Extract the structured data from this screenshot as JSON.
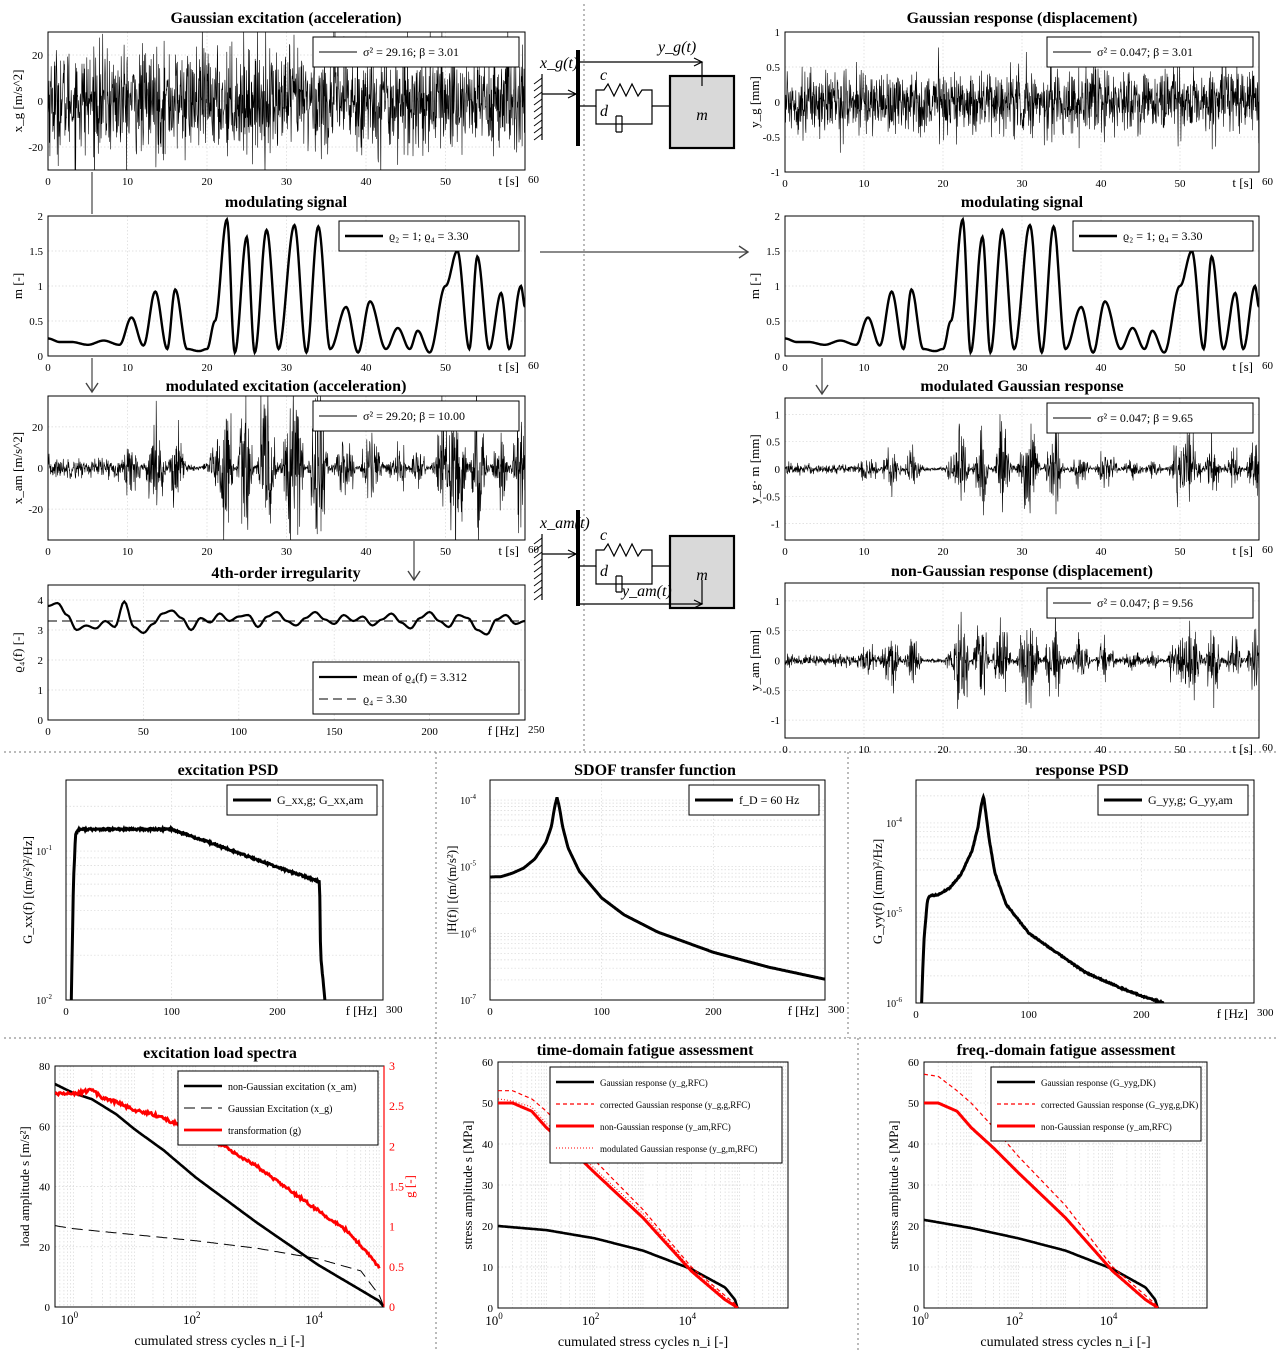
{
  "chart_data": [
    {
      "id": "p1",
      "type": "line",
      "title": "Gaussian excitation (acceleration)",
      "xlabel": "t [s]",
      "ylabel": "x_g [m/s^2]",
      "xlim": [
        0,
        60
      ],
      "ylim": [
        -30,
        30
      ],
      "xticks": [
        0,
        10,
        20,
        30,
        40,
        50,
        60
      ],
      "yticks": [
        -20,
        0,
        20
      ],
      "legend": "top-right",
      "legend_text": "σ² = 29.16;   β = 3.01",
      "signal": {
        "kind": "noise",
        "amplitude": 15,
        "modulated": false
      }
    },
    {
      "id": "p2",
      "type": "line",
      "title": "modulating signal",
      "xlabel": "t [s]",
      "ylabel": "m [-]",
      "xlim": [
        0,
        60
      ],
      "ylim": [
        0,
        2
      ],
      "xticks": [
        0,
        10,
        20,
        30,
        40,
        50,
        60
      ],
      "yticks": [
        0,
        0.5,
        1,
        1.5,
        2
      ],
      "legend": "top-right",
      "legend_text": "ϱ₂ = 1;   ϱ₄ = 3.30",
      "series": [
        {
          "x": [
            0,
            1.5,
            3,
            5,
            7,
            9,
            10.5,
            12,
            13.5,
            15,
            16,
            17.5,
            19,
            20,
            21,
            22.5,
            23.5,
            25,
            26,
            27.5,
            29,
            31,
            32.5,
            34,
            35.5,
            37.5,
            39,
            40.5,
            42.5,
            44,
            45.5,
            46.5,
            48,
            50,
            51.5,
            53,
            54,
            55.5,
            57,
            58,
            59.5,
            60
          ],
          "y": [
            0.25,
            0.2,
            0.2,
            0.16,
            0.22,
            0.16,
            0.55,
            0.15,
            0.92,
            0.1,
            0.95,
            0.1,
            0.07,
            0.1,
            0.5,
            1.95,
            0.05,
            1.7,
            0.05,
            1.8,
            0.1,
            1.87,
            0.05,
            1.85,
            0.1,
            0.7,
            0.05,
            0.78,
            0.1,
            0.4,
            0.1,
            0.36,
            0.05,
            1.0,
            1.5,
            0.1,
            1.42,
            0.1,
            0.9,
            0.1,
            1.0,
            0.7
          ]
        }
      ]
    },
    {
      "id": "p3",
      "type": "line",
      "title": "modulated excitation  (acceleration)",
      "xlabel": "t [s]",
      "ylabel": "x_am [m/s^2]",
      "xlim": [
        0,
        60
      ],
      "ylim": [
        -35,
        35
      ],
      "xticks": [
        0,
        10,
        20,
        30,
        40,
        50,
        60
      ],
      "yticks": [
        -20,
        0,
        20
      ],
      "legend": "top-right",
      "legend_text": "σ² = 29.20;   β = 10.00",
      "signal": {
        "kind": "noise",
        "amplitude": 15,
        "modulated": true
      }
    },
    {
      "id": "p4",
      "type": "line",
      "title": "4th-order irregularity",
      "xlabel": "f [Hz]",
      "ylabel": "ϱ₄(f) [-]",
      "xlim": [
        0,
        250
      ],
      "ylim": [
        0,
        4.5
      ],
      "xticks": [
        0,
        50,
        100,
        150,
        200,
        250
      ],
      "yticks": [
        0,
        1,
        2,
        3,
        4
      ],
      "legend": "bottom-right",
      "series": [
        {
          "name": "mean of  ϱ₄(f) = 3.312",
          "x": [
            0,
            5,
            10,
            15,
            20,
            25,
            30,
            35,
            40,
            45,
            50,
            55,
            60,
            65,
            70,
            75,
            80,
            85,
            90,
            95,
            100,
            105,
            110,
            115,
            120,
            125,
            130,
            135,
            140,
            145,
            150,
            155,
            160,
            165,
            170,
            175,
            180,
            185,
            190,
            195,
            200,
            205,
            210,
            215,
            220,
            225,
            230,
            235,
            240,
            245,
            250
          ],
          "y": [
            3.8,
            3.9,
            3.5,
            3.0,
            3.15,
            3.05,
            3.3,
            3.1,
            3.95,
            3.1,
            2.9,
            3.2,
            3.55,
            3.65,
            3.4,
            3.0,
            3.4,
            3.25,
            3.55,
            3.3,
            3.45,
            3.5,
            3.1,
            3.45,
            3.6,
            3.3,
            3.15,
            3.4,
            3.6,
            3.35,
            3.2,
            3.5,
            3.3,
            3.45,
            3.15,
            3.35,
            3.55,
            3.25,
            3.05,
            3.4,
            3.6,
            3.3,
            3.1,
            3.5,
            3.4,
            3.0,
            2.85,
            3.35,
            3.5,
            3.2,
            3.3
          ]
        },
        {
          "name": "ϱ₄ = 3.30",
          "dashed": true,
          "x": [
            0,
            250
          ],
          "y": [
            3.3,
            3.3
          ]
        }
      ]
    },
    {
      "id": "p5",
      "type": "line",
      "title": "Gaussian response  (displacement)",
      "xlabel": "t [s]",
      "ylabel": "y_g [mm]",
      "xlim": [
        0,
        60
      ],
      "ylim": [
        -1,
        1
      ],
      "xticks": [
        0,
        10,
        20,
        30,
        40,
        50,
        60
      ],
      "yticks": [
        -1,
        -0.5,
        0,
        0.5,
        1
      ],
      "legend": "top-right",
      "legend_text": "σ² = 0.047;   β = 3.01",
      "signal": {
        "kind": "noise",
        "amplitude": 0.3,
        "modulated": false
      }
    },
    {
      "id": "p6",
      "type": "line",
      "title": "modulating signal",
      "xlabel": "t [s]",
      "ylabel": "m [-]",
      "xlim": [
        0,
        60
      ],
      "ylim": [
        0,
        2
      ],
      "xticks": [
        0,
        10,
        20,
        30,
        40,
        50,
        60
      ],
      "yticks": [
        0,
        0.5,
        1,
        1.5,
        2
      ],
      "legend": "top-right",
      "legend_text": "ϱ₂ = 1;   ϱ₄ = 3.30",
      "same_as": "p2"
    },
    {
      "id": "p7",
      "type": "line",
      "title": "modulated Gaussian response",
      "xlabel": "t [s]",
      "ylabel": "y_g· m [mm]",
      "xlim": [
        0,
        60
      ],
      "ylim": [
        -1.3,
        1.3
      ],
      "xticks": [
        0,
        10,
        20,
        30,
        40,
        50,
        60
      ],
      "yticks": [
        -1,
        -0.5,
        0,
        0.5,
        1
      ],
      "legend": "top-right",
      "legend_text": "σ² = 0.047;   β = 9.65",
      "signal": {
        "kind": "noise",
        "amplitude": 0.3,
        "modulated": true
      }
    },
    {
      "id": "p8",
      "type": "line",
      "title": "non-Gaussian response  (displacement)",
      "xlabel": "t [s]",
      "ylabel": "y_am [mm]",
      "xlim": [
        0,
        60
      ],
      "ylim": [
        -1.3,
        1.3
      ],
      "xticks": [
        0,
        10,
        20,
        30,
        40,
        50,
        60
      ],
      "yticks": [
        -1,
        -0.5,
        0,
        0.5,
        1
      ],
      "legend": "top-right",
      "legend_text": "σ² = 0.047;   β = 9.56",
      "signal": {
        "kind": "noise",
        "amplitude": 0.3,
        "modulated": true
      }
    },
    {
      "id": "p9",
      "type": "line",
      "title": "excitation PSD",
      "xlabel": "f [Hz]",
      "ylabel": "G_xx(f) [(m/s²)²/Hz]",
      "xscale": "linear",
      "yscale": "log",
      "xlim": [
        0,
        300
      ],
      "ylim": [
        0.01,
        0.3
      ],
      "xticks": [
        0,
        100,
        200,
        300
      ],
      "legend": "top-right",
      "series": [
        {
          "name": "G_xx,g; G_xx,am",
          "x": [
            5,
            7,
            9,
            12,
            50,
            100,
            150,
            200,
            230,
            240,
            241,
            245
          ],
          "y": [
            0.01,
            0.06,
            0.13,
            0.14,
            0.14,
            0.14,
            0.105,
            0.078,
            0.066,
            0.062,
            0.02,
            0.01
          ]
        }
      ]
    },
    {
      "id": "p10",
      "type": "line",
      "title": "SDOF transfer function",
      "xlabel": "f [Hz]",
      "ylabel": "|H(f)| [(m/(m/s²)]",
      "xscale": "linear",
      "yscale": "log",
      "xlim": [
        0,
        300
      ],
      "ylim": [
        1e-07,
        0.0002
      ],
      "xticks": [
        0,
        100,
        200,
        300
      ],
      "legend": "top-right",
      "series": [
        {
          "name": "f_D = 60 Hz",
          "x": [
            0,
            10,
            20,
            30,
            40,
            50,
            55,
            58,
            60,
            62,
            65,
            70,
            80,
            100,
            120,
            150,
            200,
            250,
            300
          ],
          "y": [
            7e-06,
            7.1e-06,
            8e-06,
            9.5e-06,
            1.3e-05,
            2.3e-05,
            4e-05,
            8e-05,
            0.00011,
            8e-05,
            4e-05,
            1.9e-05,
            8.5e-06,
            3.4e-06,
            1.9e-06,
            1.05e-06,
            5.2e-07,
            3.1e-07,
            2.05e-07
          ]
        }
      ]
    },
    {
      "id": "p11",
      "type": "line",
      "title": "response PSD",
      "xlabel": "f [Hz]",
      "ylabel": "G_yy(f) [(mm)²/Hz]",
      "xscale": "linear",
      "yscale": "log",
      "xlim": [
        0,
        300
      ],
      "ylim": [
        1e-06,
        0.0003
      ],
      "xticks": [
        0,
        100,
        200,
        300
      ],
      "legend": "top-right",
      "series": [
        {
          "name": "G_yy,g; G_yy,am",
          "x": [
            5,
            7,
            10,
            12,
            20,
            30,
            40,
            50,
            55,
            58,
            60,
            62,
            65,
            70,
            80,
            100,
            120,
            150,
            180,
            200,
            220
          ],
          "y": [
            1e-06,
            5e-06,
            1.35e-05,
            1.55e-05,
            1.6e-05,
            1.9e-05,
            2.7e-05,
            5e-05,
            9e-05,
            0.00016,
            0.0002,
            0.00013,
            6.5e-05,
            2.8e-05,
            1.25e-05,
            6e-06,
            4e-06,
            2.2e-06,
            1.5e-06,
            1.2e-06,
            1e-06
          ]
        }
      ]
    },
    {
      "id": "p12",
      "type": "line",
      "title": "excitation load spectra",
      "xlabel": "cumulated stress cycles n_i [-]",
      "ylabel": "load amplitude  s  [m/s²]",
      "y2label": "g [-]",
      "xscale": "log",
      "xlim": [
        0.5,
        120000.0
      ],
      "ylim": [
        0,
        80
      ],
      "y2lim": [
        0,
        3
      ],
      "xticks_exp": [
        0,
        2,
        4
      ],
      "yticks": [
        0,
        20,
        40,
        60,
        80
      ],
      "y2ticks": [
        0,
        0.5,
        1,
        1.5,
        2,
        2.5,
        3
      ],
      "legend": "top-right",
      "series": [
        {
          "name": "non-Gaussian excitation (x_am)",
          "x": [
            0.5,
            1,
            2,
            5,
            10,
            30,
            100,
            1000,
            10000,
            100000,
            120000
          ],
          "y": [
            74,
            71,
            69,
            64,
            59,
            52,
            43,
            28,
            14,
            2,
            0
          ]
        },
        {
          "name": "Gaussian Excitation (x_g)",
          "dashed": true,
          "x": [
            0.5,
            1,
            10,
            100,
            1000,
            10000,
            50000,
            100000,
            120000
          ],
          "y": [
            27,
            26,
            24,
            22,
            19.5,
            16,
            12,
            4,
            0
          ]
        },
        {
          "name": "transformation (g)",
          "axis": "y2",
          "x": [
            0.5,
            1,
            2,
            3,
            5,
            10,
            20,
            50,
            100,
            300,
            1000,
            10000,
            30000,
            60000,
            100000
          ],
          "y": [
            2.65,
            2.65,
            2.7,
            2.6,
            2.55,
            2.45,
            2.4,
            2.28,
            2.15,
            2.0,
            1.75,
            1.2,
            0.95,
            0.7,
            0.5
          ]
        }
      ]
    },
    {
      "id": "p13",
      "type": "line",
      "title": "time-domain fatigue assessment",
      "xlabel": "cumulated stress cycles n_i [-]",
      "ylabel": "stress amplitude  s  [MPa]",
      "xscale": "log",
      "xlim": [
        1,
        1000000.0
      ],
      "ylim": [
        0,
        60
      ],
      "xticks_exp": [
        0,
        2,
        4
      ],
      "yticks": [
        0,
        10,
        20,
        30,
        40,
        50,
        60
      ],
      "legend": "top-right",
      "series": [
        {
          "name": "Gaussian response (y_g,RFC)",
          "x": [
            1,
            10,
            100,
            1000,
            10000,
            50000,
            80000,
            90000
          ],
          "y": [
            20,
            19,
            17,
            14,
            9.5,
            5,
            2,
            0
          ]
        },
        {
          "name": "corrected Gaussian response (y_g,g,RFC)",
          "dashed": true,
          "x": [
            1,
            2,
            5,
            10,
            30,
            100,
            1000,
            10000,
            50000,
            80000,
            90000
          ],
          "y": [
            53,
            53,
            51,
            48,
            42,
            36,
            24,
            10,
            3,
            1,
            0
          ]
        },
        {
          "name": "non-Gaussian response (y_am,RFC)",
          "x": [
            1,
            2,
            5,
            10,
            30,
            100,
            1000,
            10000,
            50000,
            80000,
            90000
          ],
          "y": [
            50,
            50,
            48,
            44,
            39,
            33,
            22,
            9,
            2,
            0.5,
            0
          ]
        },
        {
          "name": "modulated Gaussian response (y_g,m,RFC)",
          "dotted": true,
          "x": [
            1,
            2,
            5,
            10,
            30,
            100,
            1000,
            10000,
            50000,
            80000,
            90000
          ],
          "y": [
            51,
            50.5,
            49,
            45,
            40,
            34,
            23,
            9.5,
            2.5,
            0.7,
            0
          ]
        }
      ]
    },
    {
      "id": "p14",
      "type": "line",
      "title": "freq.-domain fatigue assessment",
      "xlabel": "cumulated stress cycles n_i [-]",
      "ylabel": "stress amplitude  s  [MPa]",
      "xscale": "log",
      "xlim": [
        1,
        1000000.0
      ],
      "ylim": [
        0,
        60
      ],
      "xticks_exp": [
        0,
        2,
        4
      ],
      "yticks": [
        0,
        10,
        20,
        30,
        40,
        50,
        60
      ],
      "legend": "top-right",
      "series": [
        {
          "name": "Gaussian response (G_yyg,DK)",
          "x": [
            1,
            10,
            100,
            1000,
            10000,
            50000,
            80000,
            90000
          ],
          "y": [
            21.5,
            19.5,
            17,
            14,
            9.5,
            5,
            2,
            0
          ]
        },
        {
          "name": "corrected Gaussian response (G_yyg,g,DK)",
          "dashed": true,
          "x": [
            1,
            2,
            5,
            10,
            30,
            100,
            1000,
            10000,
            50000,
            80000,
            90000
          ],
          "y": [
            57,
            56.5,
            53,
            50,
            44,
            37,
            25,
            10,
            3,
            1,
            0
          ]
        },
        {
          "name": "non-Gaussian response (y_am,RFC)",
          "x": [
            1,
            2,
            5,
            10,
            30,
            100,
            1000,
            10000,
            50000,
            80000,
            90000
          ],
          "y": [
            50,
            50,
            48,
            44,
            39,
            33,
            22,
            9,
            2,
            0.5,
            0
          ]
        }
      ]
    }
  ],
  "diagram": {
    "top": {
      "x_label": "x_g(t)",
      "y_label": "y_g(t)",
      "c": "c",
      "d": "d",
      "m": "m"
    },
    "bottom": {
      "x_label": "x_am(t)",
      "y_label": "y_am(t)",
      "c": "c",
      "d": "d",
      "m": "m"
    }
  },
  "colors": {
    "red": "#ff0000",
    "black": "#000000",
    "grid": "#dddddd"
  }
}
